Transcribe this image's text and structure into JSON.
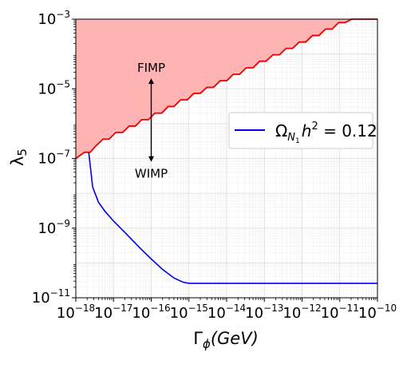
{
  "chart_data": {
    "type": "line",
    "xlabel": "Γϕ(GeV)",
    "ylabel": "λ5",
    "x_scale": "log",
    "y_scale": "log",
    "xlim": [
      1e-18,
      1e-10
    ],
    "ylim": [
      1e-11,
      0.001
    ],
    "grid": true,
    "legend_placement": "center-right",
    "x_ticks": [
      {
        "base": "10",
        "exp": "−18",
        "value": 1e-18
      },
      {
        "base": "10",
        "exp": "−17",
        "value": 1e-17
      },
      {
        "base": "10",
        "exp": "−16",
        "value": 1e-16
      },
      {
        "base": "10",
        "exp": "−15",
        "value": 1e-15
      },
      {
        "base": "10",
        "exp": "−14",
        "value": 1e-14
      },
      {
        "base": "10",
        "exp": "−13",
        "value": 1e-13
      },
      {
        "base": "10",
        "exp": "−12",
        "value": 1e-12
      },
      {
        "base": "10",
        "exp": "−11",
        "value": 1e-11
      },
      {
        "base": "10",
        "exp": "−10",
        "value": 1e-10
      }
    ],
    "y_ticks": [
      {
        "base": "10",
        "exp": "−11",
        "value": 1e-11
      },
      {
        "base": "10",
        "exp": "−9",
        "value": 1e-09
      },
      {
        "base": "10",
        "exp": "−7",
        "value": 1e-07
      },
      {
        "base": "10",
        "exp": "−5",
        "value": 1e-05
      },
      {
        "base": "10",
        "exp": "−3",
        "value": 0.001
      }
    ],
    "series": [
      {
        "legend": {
          "omega": "Ω",
          "sub": "N",
          "subsub": "1",
          "h": "h",
          "sup": "2",
          "rest": " = 0.12"
        },
        "color": "#0000ee",
        "x": [
          2.2e-18,
          2.8e-18,
          4e-18,
          6e-18,
          1e-17,
          2e-17,
          5e-17,
          1e-16,
          2e-16,
          4e-16,
          7e-16,
          1e-15,
          3e-15,
          1e-14,
          1e-13,
          1e-12,
          1e-11,
          1e-10
        ],
        "y": [
          1.5e-07,
          1.5e-08,
          5.5e-09,
          3e-09,
          1.6e-09,
          7.5e-10,
          2.7e-10,
          1.3e-10,
          6.5e-11,
          3.7e-11,
          2.8e-11,
          2.6e-11,
          2.6e-11,
          2.6e-11,
          2.6e-11,
          2.6e-11,
          2.6e-11,
          2.6e-11
        ]
      },
      {
        "name": "boundary",
        "color": "#ee0000",
        "fill": "#ffb3b3",
        "x": [
          1e-18,
          1.7e-18,
          2.4e-18,
          3.4e-18,
          5.3e-18,
          7.6e-18,
          1.15e-17,
          1.75e-17,
          2.6e-17,
          3.8e-17,
          5.6e-17,
          8.5e-17,
          1.25e-16,
          1.9e-16,
          2.8e-16,
          4e-16,
          6e-16,
          9e-16,
          1.35e-15,
          2e-15,
          3e-15,
          4.5e-15,
          6.7e-15,
          1e-14,
          1.5e-14,
          2.2e-14,
          3.3e-14,
          5e-14,
          7.5e-14,
          1.1e-13,
          1.7e-13,
          2.5e-13,
          3.8e-13,
          5.6e-13,
          8.4e-13,
          1.25e-12,
          1.9e-12,
          2.8e-12,
          4.2e-12,
          6.3e-12,
          9.4e-12,
          1.4e-11,
          2.1e-11,
          3.2e-11,
          4.8e-11,
          7.2e-11,
          1e-10
        ],
        "y": [
          1e-07,
          1.5e-07,
          1.5e-07,
          2.3e-07,
          3.6e-07,
          3.6e-07,
          5.6e-07,
          5.6e-07,
          8.5e-07,
          8.5e-07,
          1.3e-06,
          1.3e-06,
          2e-06,
          2e-06,
          3.1e-06,
          3.1e-06,
          4.8e-06,
          4.8e-06,
          7.4e-06,
          7.4e-06,
          1.1e-05,
          1.1e-05,
          1.7e-05,
          1.7e-05,
          2.6e-05,
          2.6e-05,
          4e-05,
          4e-05,
          6.2e-05,
          6.2e-05,
          9.5e-05,
          9.5e-05,
          0.000145,
          0.000145,
          0.00022,
          0.00022,
          0.00034,
          0.00034,
          0.00052,
          0.00052,
          0.0008,
          0.0008,
          0.001,
          0.001,
          0.001,
          0.001,
          0.001
        ]
      }
    ],
    "annotations": {
      "top": "FIMP",
      "bottom": "WIMP",
      "arrow_x": 1e-16,
      "arrow_y_top": 2e-05,
      "arrow_y_bottom": 8e-08
    }
  }
}
